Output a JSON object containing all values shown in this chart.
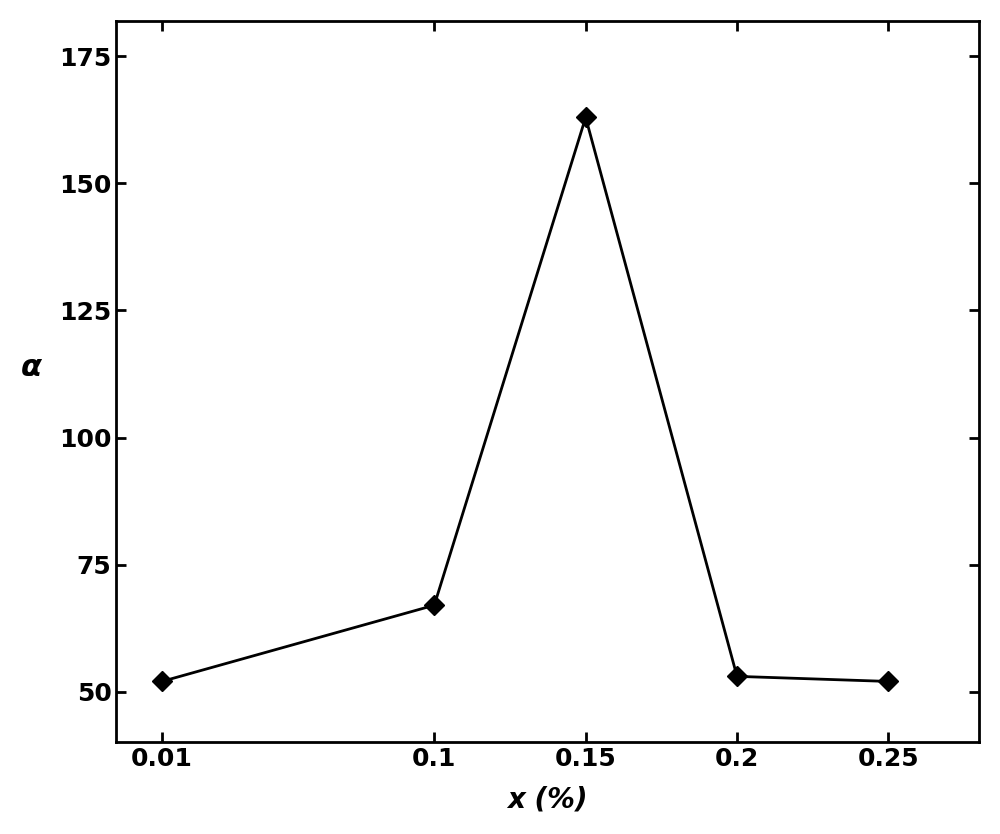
{
  "x": [
    0.01,
    0.1,
    0.15,
    0.2,
    0.25
  ],
  "y": [
    52,
    67,
    163,
    53,
    52
  ],
  "xlabel": "x (%)",
  "ylabel": "α",
  "xlim": [
    -0.005,
    0.28
  ],
  "ylim": [
    40,
    182
  ],
  "xticks": [
    0.01,
    0.1,
    0.15,
    0.2,
    0.25
  ],
  "yticks": [
    50,
    75,
    100,
    125,
    150,
    175
  ],
  "line_color": "#000000",
  "marker": "D",
  "marker_size": 10,
  "marker_color": "#000000",
  "line_width": 2.0,
  "background_color": "#ffffff",
  "xlabel_fontsize": 20,
  "ylabel_fontsize": 22,
  "tick_fontsize": 18
}
